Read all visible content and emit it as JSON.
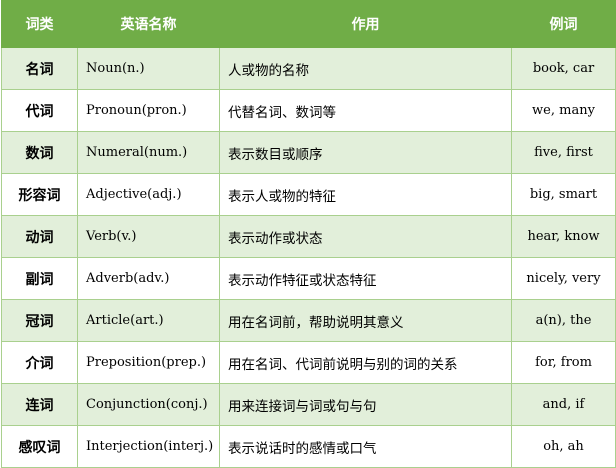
{
  "table": {
    "headers": [
      "词类",
      "英语名称",
      "作用",
      "例词"
    ],
    "rows": [
      [
        "名词",
        "Noun(n.)",
        "人或物的名称",
        "book, car"
      ],
      [
        "代词",
        "Pronoun(pron.)",
        "代替名词、数词等",
        "we, many"
      ],
      [
        "数词",
        "Numeral(num.)",
        "表示数目或顺序",
        "five, first"
      ],
      [
        "形容词",
        "Adjective(adj.)",
        "表示人或物的特征",
        "big, smart"
      ],
      [
        "动词",
        "Verb(v.)",
        "表示动作或状态",
        "hear, know"
      ],
      [
        "副词",
        "Adverb(adv.)",
        "表示动作特征或状态特征",
        "nicely, very"
      ],
      [
        "冠词",
        "Article(art.)",
        "用在名词前，帮助说明其意义",
        "a(n), the"
      ],
      [
        "介词",
        "Preposition(prep.)",
        "用在名词、代词前说明与别的词的关系",
        "for, from"
      ],
      [
        "连词",
        "Conjunction(conj.)",
        "用来连接词与词或句与句",
        "and, if"
      ],
      [
        "感叹词",
        "Interjection(interj.)",
        "表示说话时的感情或口气",
        "oh, ah"
      ]
    ]
  },
  "colors": {
    "header": "#70ad47",
    "alt_row": "#e2efda",
    "border": "#a9d08e"
  }
}
